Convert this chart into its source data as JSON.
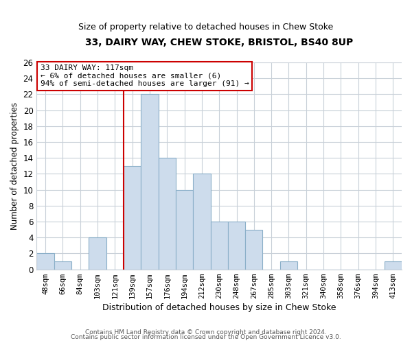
{
  "title": "33, DAIRY WAY, CHEW STOKE, BRISTOL, BS40 8UP",
  "subtitle": "Size of property relative to detached houses in Chew Stoke",
  "xlabel": "Distribution of detached houses by size in Chew Stoke",
  "ylabel": "Number of detached properties",
  "bin_labels": [
    "48sqm",
    "66sqm",
    "84sqm",
    "103sqm",
    "121sqm",
    "139sqm",
    "157sqm",
    "176sqm",
    "194sqm",
    "212sqm",
    "230sqm",
    "248sqm",
    "267sqm",
    "285sqm",
    "303sqm",
    "321sqm",
    "340sqm",
    "358sqm",
    "376sqm",
    "394sqm",
    "413sqm"
  ],
  "bar_heights": [
    2,
    1,
    0,
    4,
    0,
    13,
    22,
    14,
    10,
    12,
    6,
    6,
    5,
    0,
    1,
    0,
    0,
    0,
    0,
    0,
    1
  ],
  "bar_color": "#cddcec",
  "bar_edge_color": "#8aafc8",
  "vline_color": "#cc0000",
  "vline_index": 4.5,
  "annotation_title": "33 DAIRY WAY: 117sqm",
  "annotation_line1": "← 6% of detached houses are smaller (6)",
  "annotation_line2": "94% of semi-detached houses are larger (91) →",
  "annotation_box_color": "#ffffff",
  "annotation_box_edge": "#cc0000",
  "ylim": [
    0,
    26
  ],
  "yticks": [
    0,
    2,
    4,
    6,
    8,
    10,
    12,
    14,
    16,
    18,
    20,
    22,
    24,
    26
  ],
  "footer1": "Contains HM Land Registry data © Crown copyright and database right 2024.",
  "footer2": "Contains public sector information licensed under the Open Government Licence v3.0.",
  "bg_color": "#ffffff",
  "grid_color": "#c8d0d8"
}
